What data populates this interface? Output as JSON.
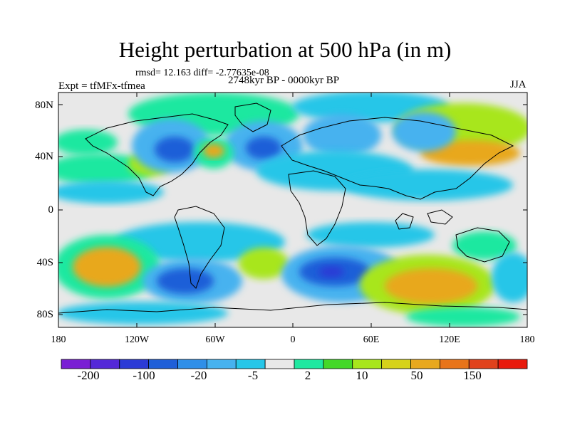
{
  "header": {
    "title": "Height perturbation at 500 hPa (in m)",
    "stats": "rmsd= 12.163 diff= -2.77635e-08",
    "period": "2748kyr BP - 0000kyr BP",
    "experiment": "Expt = tfMFx-tfmea",
    "season": "JJA"
  },
  "axes": {
    "lat_labels": [
      "80N",
      "40N",
      "0",
      "40S",
      "80S"
    ],
    "lon_labels": [
      "180",
      "120W",
      "60W",
      "0",
      "60E",
      "120E",
      "180"
    ]
  },
  "colorbar": {
    "labels": [
      "-200",
      "-100",
      "-20",
      "-5",
      "2",
      "10",
      "50",
      "150"
    ],
    "colors": [
      "#7a1fd4",
      "#5428d8",
      "#2b3ad6",
      "#1f5fd8",
      "#2f8fe8",
      "#46b2ef",
      "#27c6e8",
      "#e8e8e8",
      "#1fe8a0",
      "#44d828",
      "#a8e61c",
      "#d6d21a",
      "#e8a81e",
      "#e8741a",
      "#e0421c",
      "#e81a0c"
    ]
  },
  "field_palette": {
    "strong_negative": "#1f5fd8",
    "negative": "#46b2ef",
    "weak_negative": "#27c6e8",
    "neutral": "#e8e8e8",
    "weak_positive": "#1fe8a0",
    "positive": "#a8e61c",
    "strong_positive": "#e8a81e",
    "peak_positive": "#e0421c",
    "peak_negative": "#2b3ad6"
  }
}
